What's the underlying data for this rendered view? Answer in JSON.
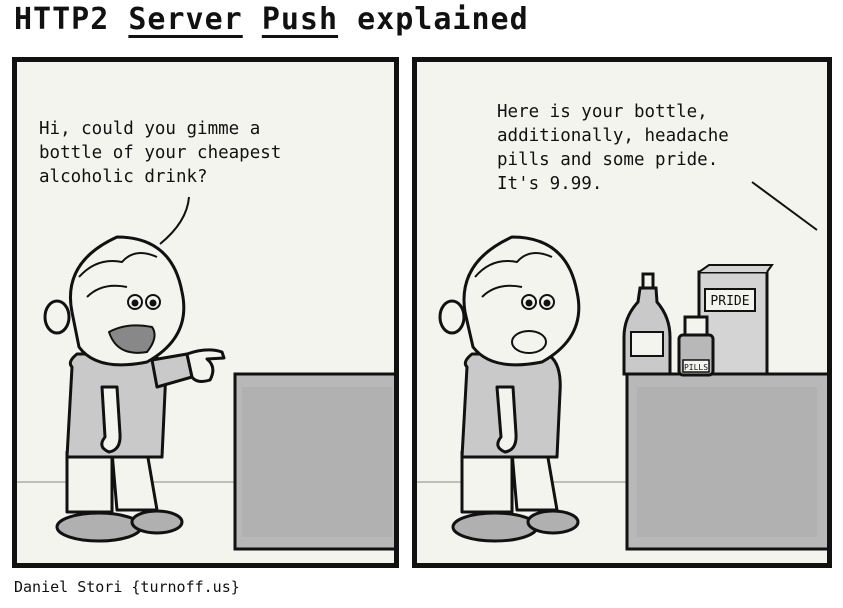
{
  "title": {
    "prefix": "HTTP2 ",
    "word1": "Server",
    "space": " ",
    "word2": "Push",
    "suffix": " explained"
  },
  "panel1": {
    "speech_lines": [
      "Hi, could you gimme a",
      "bottle of your cheapest",
      "alcoholic drink?"
    ]
  },
  "panel2": {
    "speech_lines": [
      "Here is your bottle,",
      "additionally, headache",
      "pills and some pride.",
      "It's 9.99."
    ],
    "box_label": "PRIDE",
    "pills_label": "PILLS"
  },
  "credit": "Daniel Stori {turnoff.us}",
  "colors": {
    "panel_bg": "#f4f4ef",
    "outline": "#111111",
    "counter_fill": "#b8b8b8",
    "shirt_fill": "#c9c9c9",
    "shoe_fill": "#b0b0b0"
  }
}
